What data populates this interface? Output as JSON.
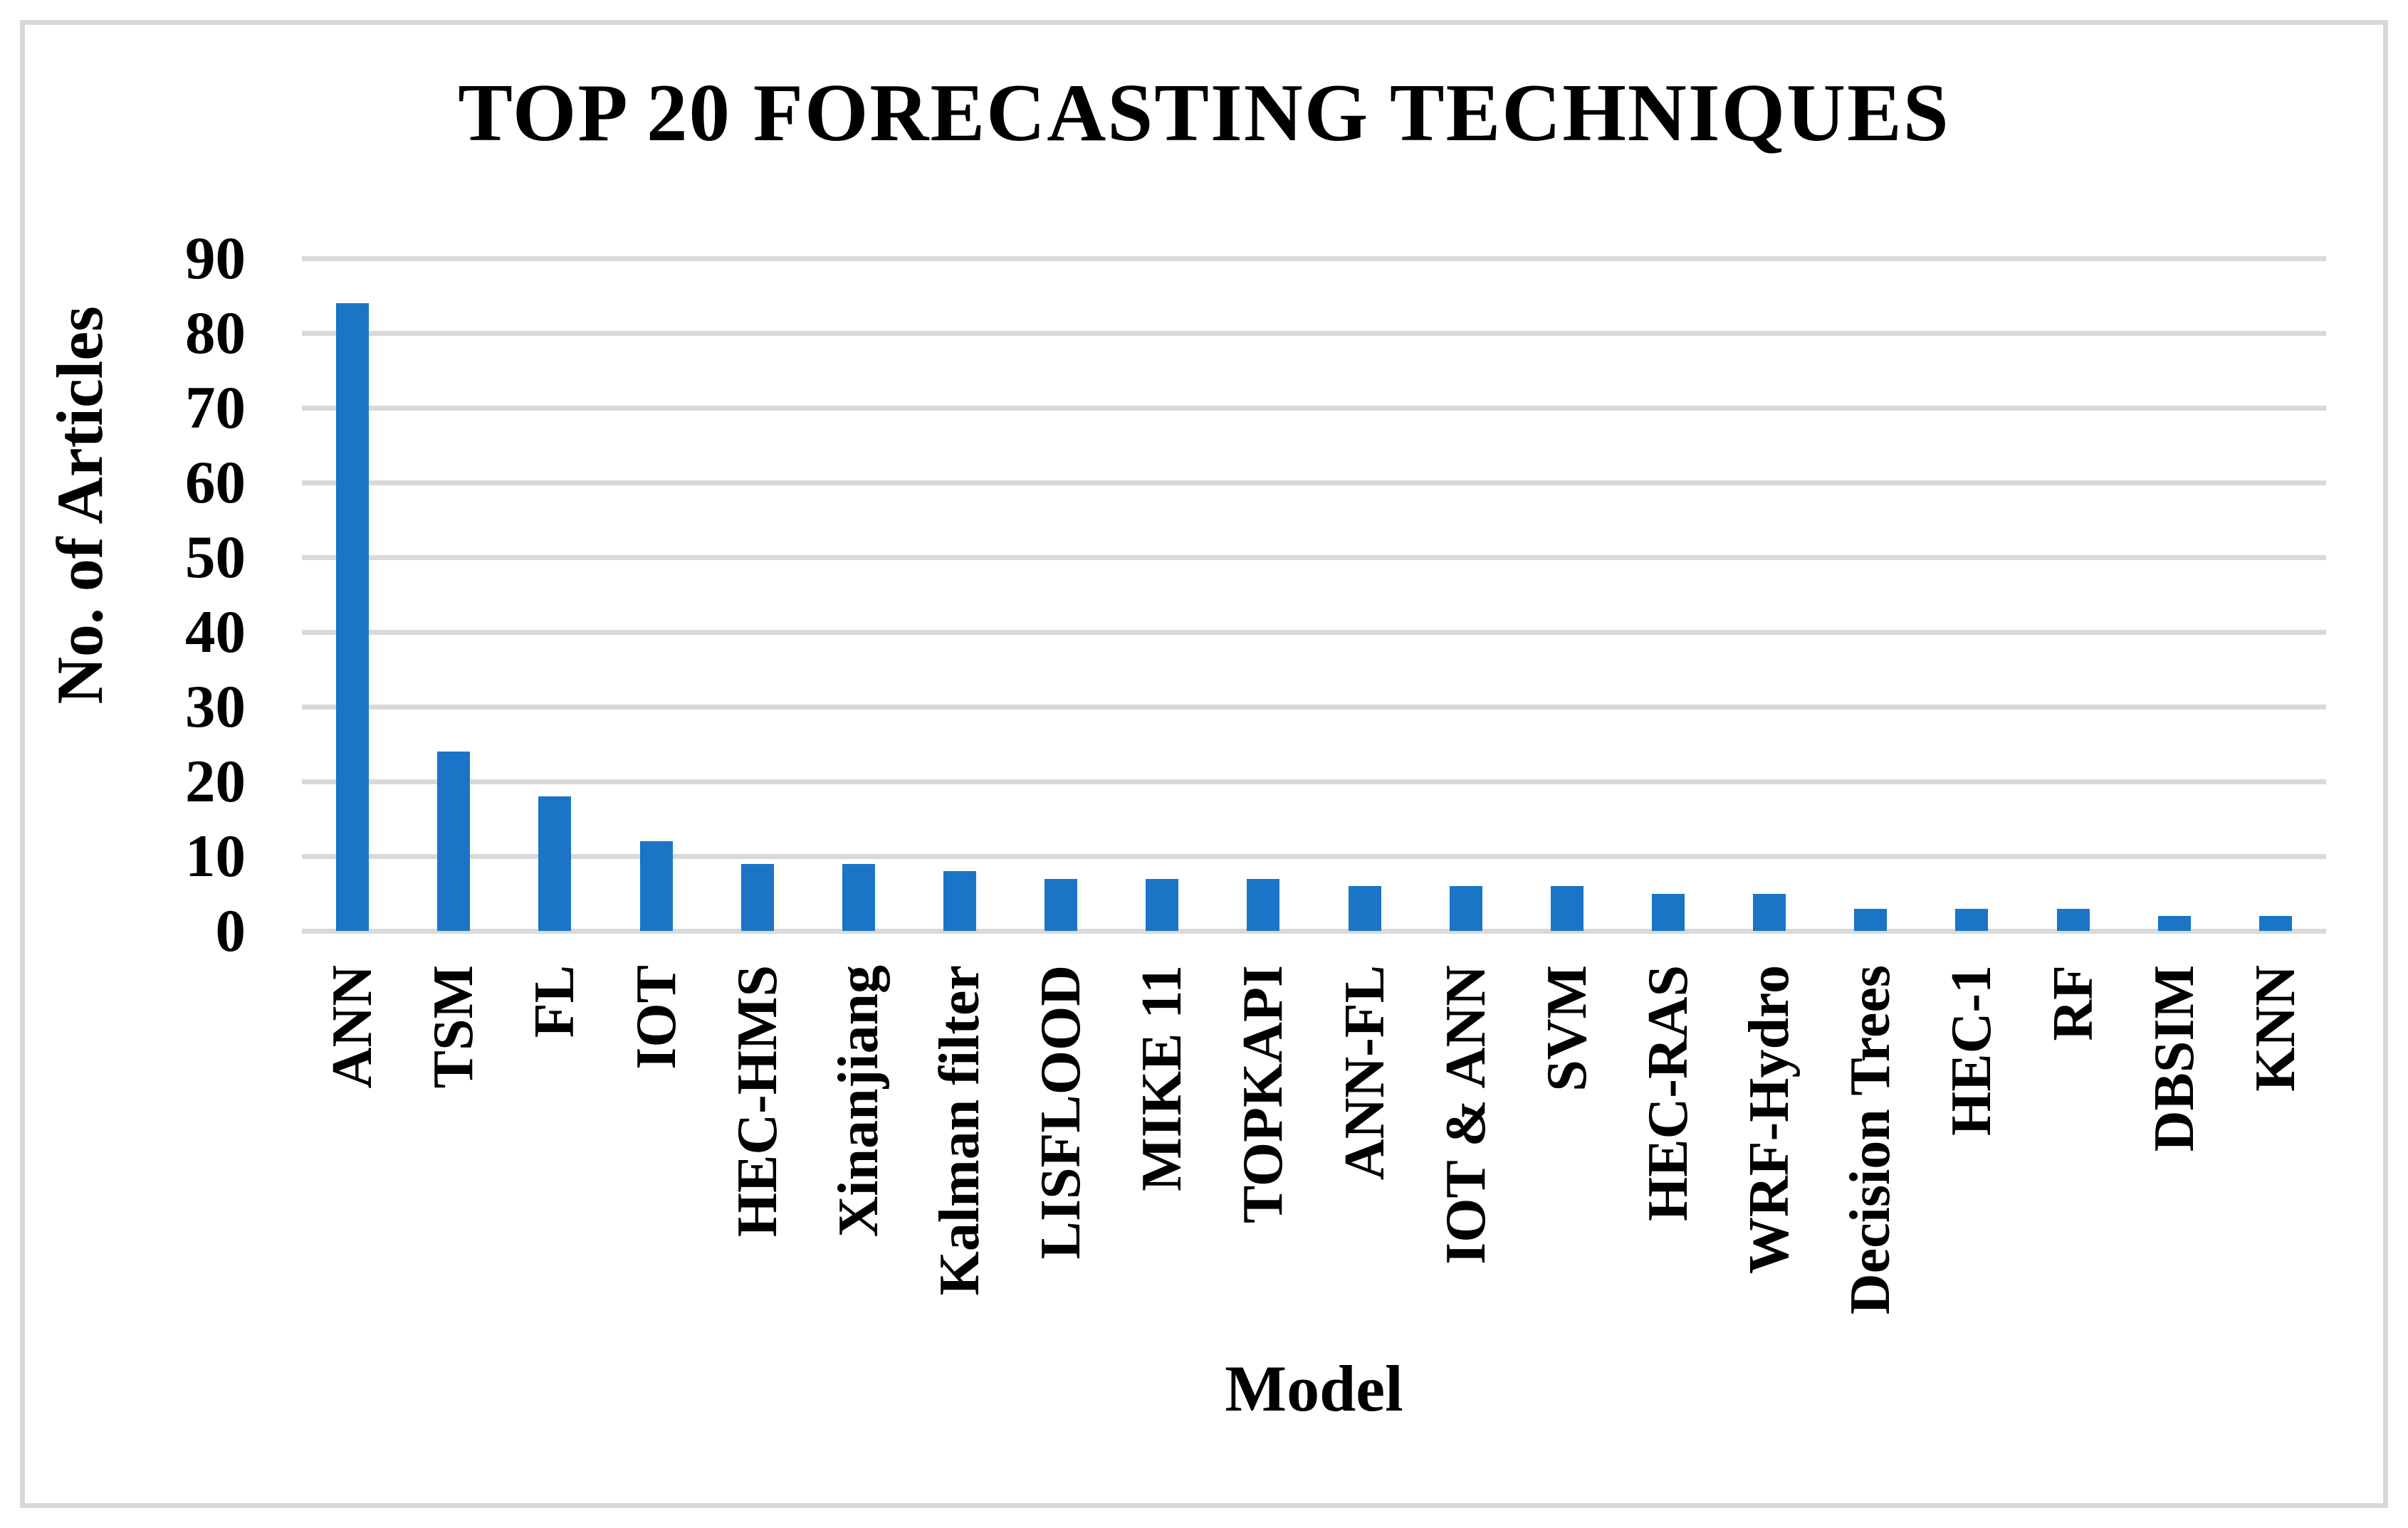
{
  "figure": {
    "title": "TOP 20 FORECASTING TECHNIQUES",
    "x_axis_title": "Model",
    "y_axis_title": "No. of Articles"
  },
  "chart_data": {
    "type": "bar",
    "title": "TOP 20 FORECASTING TECHNIQUES",
    "xlabel": "Model",
    "ylabel": "No. of Articles",
    "categories": [
      "ANN",
      "TSM",
      "FL",
      "IOT",
      "HEC-HMS",
      "Xinanjiang",
      "Kalman filter",
      "LISFLOOD",
      "MIKE 11",
      "TOPKAPI",
      "ANN-FL",
      "IOT & ANN",
      "SVM",
      "HEC-RAS",
      "WRF-Hydro",
      "Decision Trees",
      "HEC-1",
      "RF",
      "DBSIM",
      "KNN"
    ],
    "values": [
      84,
      24,
      18,
      12,
      9,
      9,
      8,
      7,
      7,
      7,
      6,
      6,
      6,
      5,
      5,
      3,
      3,
      3,
      2,
      2
    ],
    "ylim": [
      0,
      90
    ],
    "yticks": [
      0,
      10,
      20,
      30,
      40,
      50,
      60,
      70,
      80,
      90
    ],
    "grid": "horizontal",
    "legend": "none",
    "bar_color": "#1B75C6",
    "gridline_color": "#D9D9D9",
    "frame_border_color": "#D9D9D9"
  }
}
